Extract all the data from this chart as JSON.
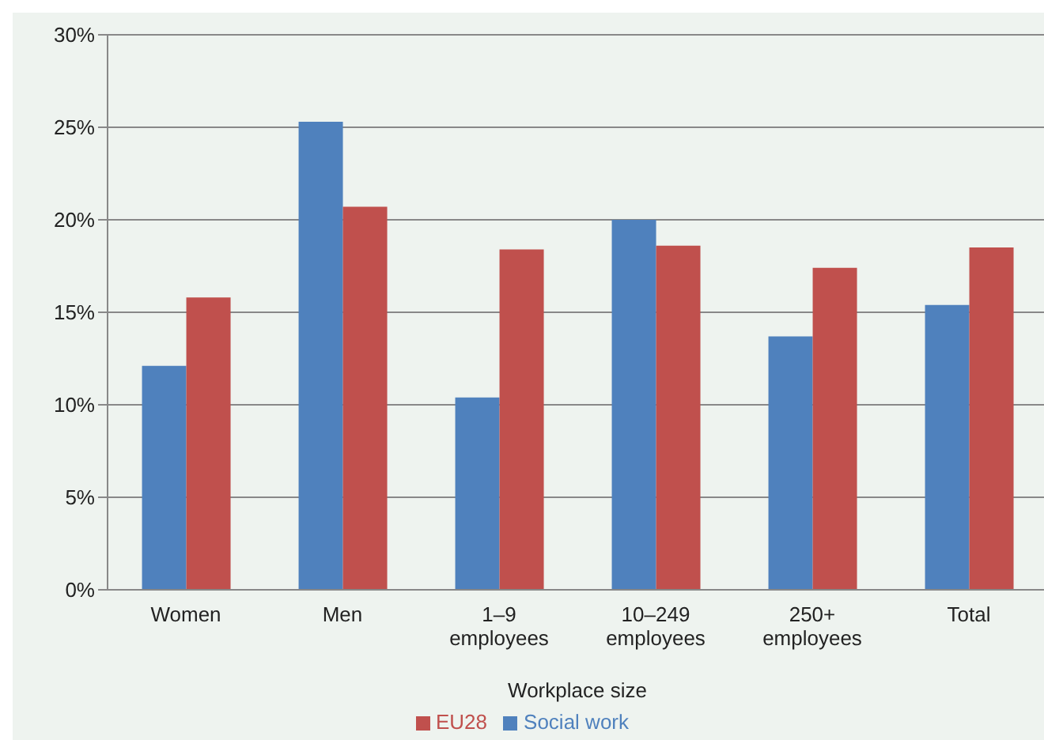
{
  "chart_data": {
    "type": "bar",
    "categories": [
      "Women",
      "Men",
      "1–9 employees",
      "10–249 employees",
      "250+ employees",
      "Total"
    ],
    "xlabel": "Workplace size",
    "series": [
      {
        "name": "Social work",
        "color": "#4f81bd",
        "values": [
          12.1,
          25.3,
          10.4,
          20.0,
          13.7,
          15.4
        ]
      },
      {
        "name": "EU28",
        "color": "#c0504d",
        "values": [
          15.8,
          20.7,
          18.4,
          18.6,
          17.4,
          18.5
        ]
      }
    ],
    "ylim": [
      0,
      30
    ],
    "yticks": [
      {
        "value": 0,
        "label": "0%"
      },
      {
        "value": 5,
        "label": "5%"
      },
      {
        "value": 10,
        "label": "10%"
      },
      {
        "value": 15,
        "label": "15%"
      },
      {
        "value": 20,
        "label": "20%"
      },
      {
        "value": 25,
        "label": "25%"
      },
      {
        "value": 30,
        "label": "30%"
      }
    ],
    "grid": "y",
    "legend": "bottom"
  }
}
